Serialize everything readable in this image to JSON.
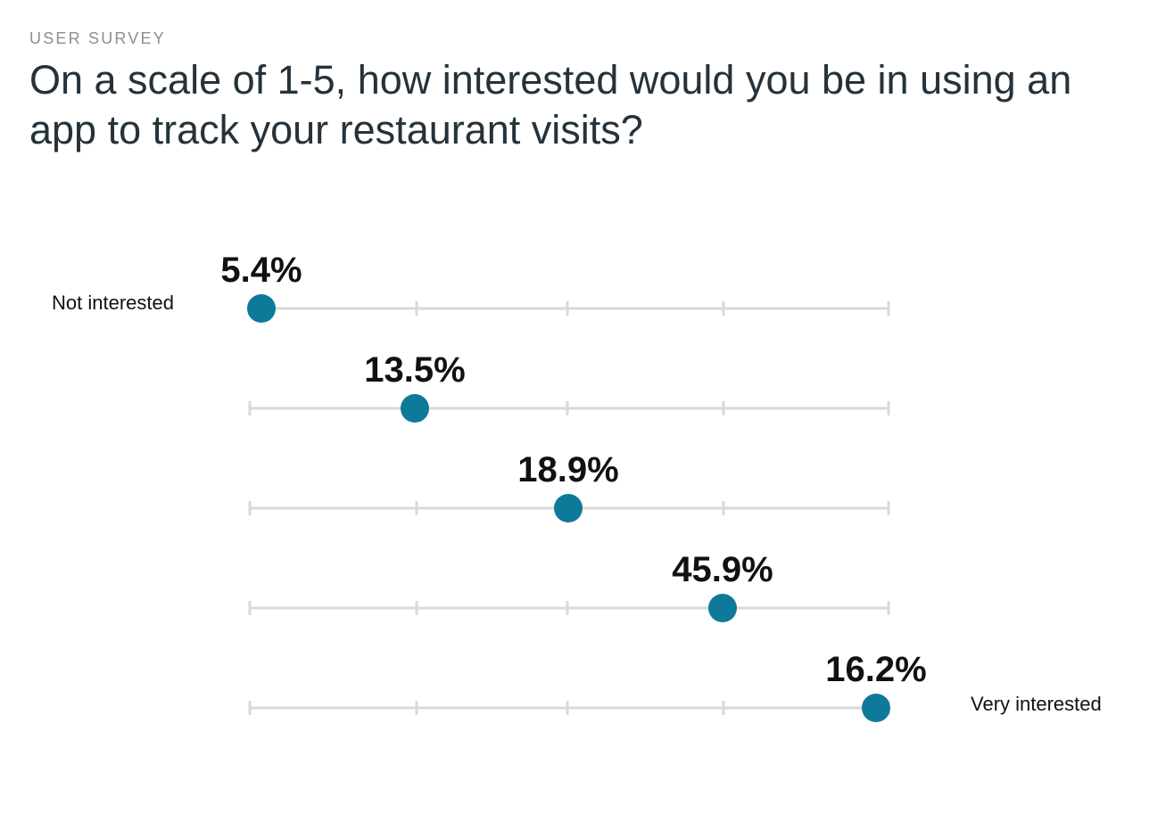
{
  "header": {
    "eyebrow": "USER SURVEY",
    "title": "On a scale of 1-5, how interested would you be in using an app to track your restaurant visits?"
  },
  "chart_data": {
    "type": "scatter",
    "title": "On a scale of 1-5, how interested would you be in using an app to track your restaurant visits?",
    "scale": [
      1,
      2,
      3,
      4,
      5
    ],
    "low_label": "Not interested",
    "high_label": "Very interested",
    "points": [
      {
        "score": 1,
        "percent": 5.4,
        "label": "5.4%"
      },
      {
        "score": 2,
        "percent": 13.5,
        "label": "13.5%"
      },
      {
        "score": 3,
        "percent": 18.9,
        "label": "18.9%"
      },
      {
        "score": 4,
        "percent": 45.9,
        "label": "45.9%"
      },
      {
        "score": 5,
        "percent": 16.2,
        "label": "16.2%"
      }
    ],
    "colors": {
      "dot": "#0e7a99",
      "track": "#d9d9d9"
    }
  }
}
